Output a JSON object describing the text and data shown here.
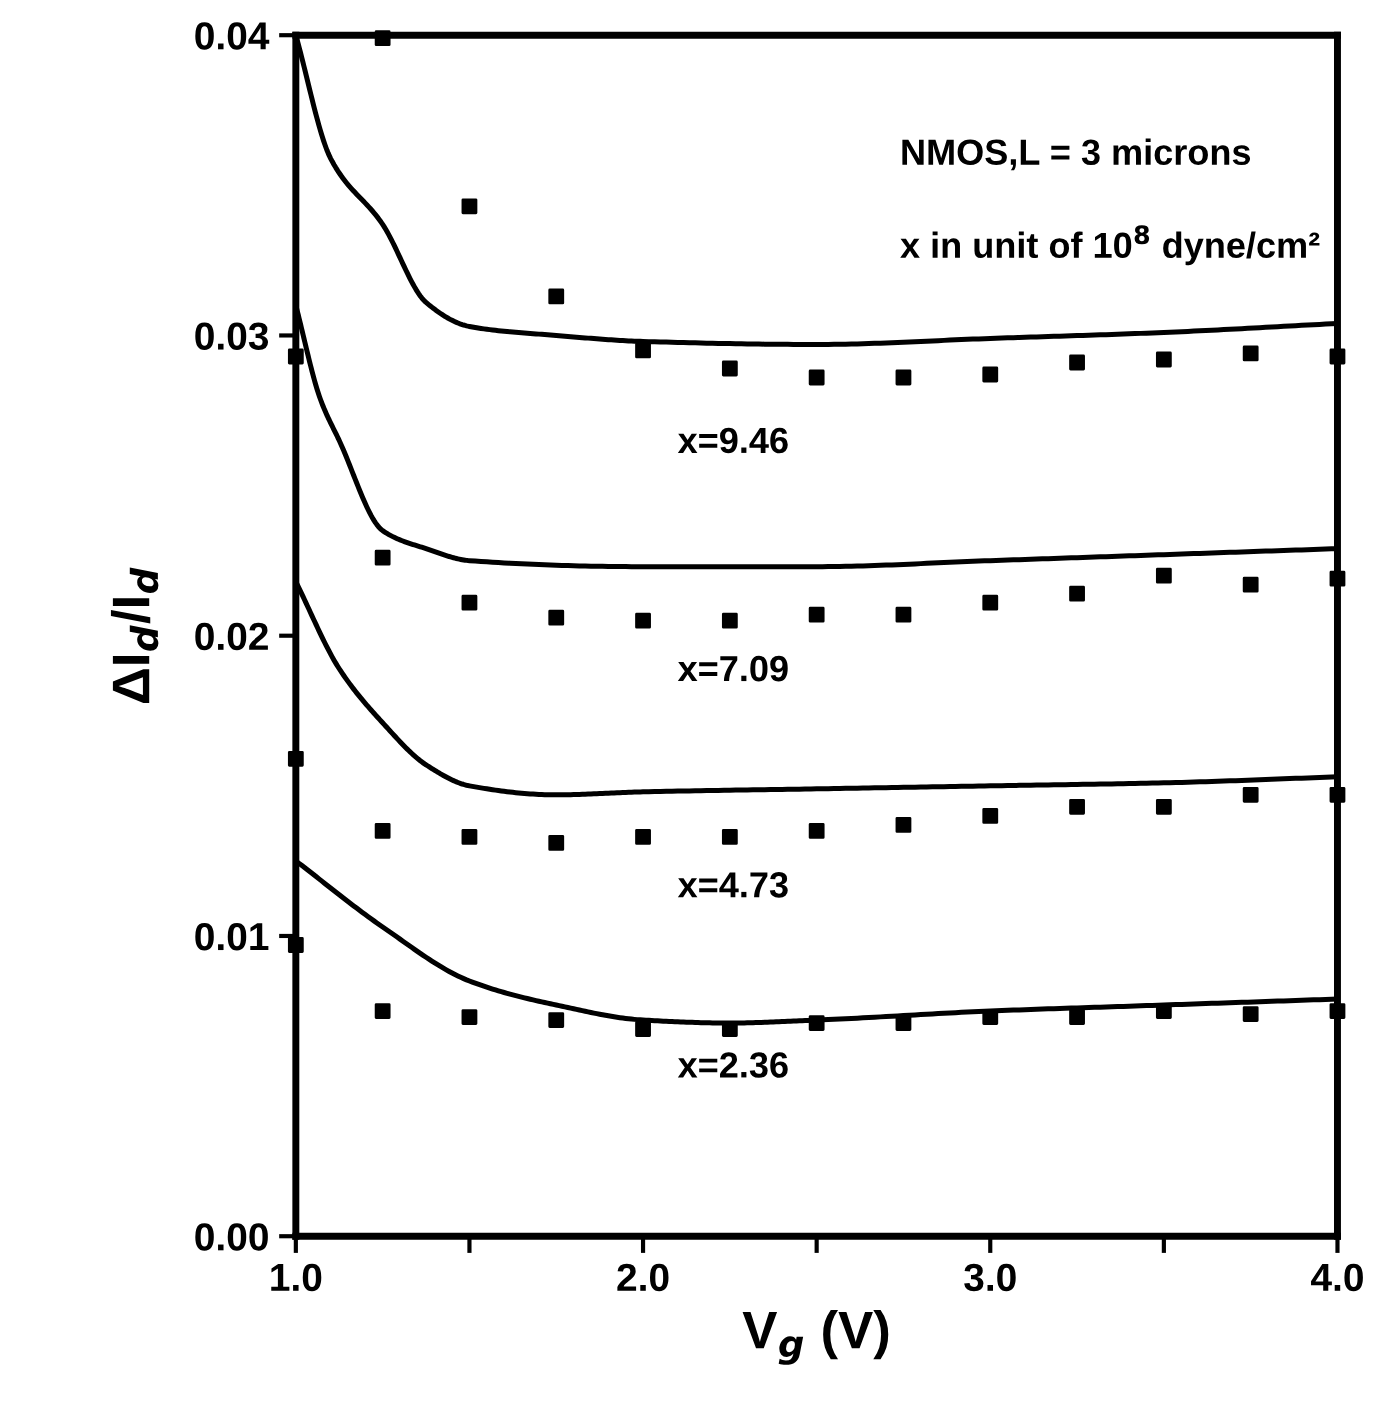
{
  "chart_data": {
    "type": "scatter",
    "xlabel": "V$_{g}$ (V)",
    "ylabel": "ΔI$_{d}$/I$_{d}$",
    "xlim": [
      1.0,
      4.0
    ],
    "ylim": [
      0.0,
      0.04
    ],
    "xticks": [
      {
        "value": 1.0,
        "label": "1.0"
      },
      {
        "value": 1.5,
        "label": null
      },
      {
        "value": 2.0,
        "label": "2.0"
      },
      {
        "value": 2.5,
        "label": null
      },
      {
        "value": 3.0,
        "label": "3.0"
      },
      {
        "value": 3.5,
        "label": null
      },
      {
        "value": 4.0,
        "label": "4.0"
      }
    ],
    "yticks": [
      {
        "value": 0.0,
        "label": "0.00"
      },
      0.01,
      0.02,
      0.03,
      0.04
    ],
    "grid": false,
    "annotations": [
      "NMOS,L = 3 microns",
      "x in unit of 10$^{8}$ dyne/cm²",
      "x=9.46",
      "x=7.09",
      "x=4.73",
      "x=2.36"
    ],
    "series": [
      {
        "marker": "square",
        "color": "#000000",
        "x": [
          1.0,
          1.25,
          1.5,
          1.75,
          2.0,
          2.25,
          2.5,
          2.75,
          3.0,
          3.25,
          3.5,
          3.75,
          4.0
        ],
        "values": [
          0.0293,
          0.0399,
          0.0343,
          0.0313,
          0.0295,
          0.0289,
          0.0286,
          0.0286,
          0.0287,
          0.0291,
          0.0292,
          0.0294,
          0.0293
        ]
      },
      {
        "marker": "square",
        "color": "#000000",
        "x": [
          1.0,
          1.25,
          1.5,
          1.75,
          2.0,
          2.25,
          2.5,
          2.75,
          3.0,
          3.25,
          3.5,
          3.75,
          4.0
        ],
        "values": [
          0.0159,
          0.0226,
          0.0211,
          0.0206,
          0.0205,
          0.0205,
          0.0207,
          0.0207,
          0.0211,
          0.0214,
          0.022,
          0.0217,
          0.0219
        ]
      },
      {
        "marker": "square",
        "color": "#000000",
        "x": [
          1.0,
          1.25,
          1.5,
          1.75,
          2.0,
          2.25,
          2.5,
          2.75,
          3.0,
          3.25,
          3.5,
          3.75,
          4.0
        ],
        "values": [
          0.0097,
          0.0135,
          0.0133,
          0.0131,
          0.0133,
          0.0133,
          0.0135,
          0.0137,
          0.014,
          0.0143,
          0.0143,
          0.0147,
          0.0147
        ]
      },
      {
        "marker": "square",
        "color": "#000000",
        "x": [
          1.25,
          1.5,
          1.75,
          2.0,
          2.25,
          2.5,
          2.75,
          3.0,
          3.25,
          3.5,
          3.75,
          4.0
        ],
        "values": [
          0.0075,
          0.0073,
          0.0072,
          0.0069,
          0.0069,
          0.0071,
          0.0071,
          0.0073,
          0.0073,
          0.0075,
          0.0074,
          0.0075
        ]
      },
      {
        "type": "line",
        "marker": "none",
        "line_style": "solid",
        "color": "#000000",
        "x": [
          1.0,
          1.1,
          1.25,
          1.375,
          1.5,
          1.75,
          2.0,
          2.5,
          3.0,
          3.5,
          4.0
        ],
        "values": [
          0.04,
          0.0359,
          0.0337,
          0.0311,
          0.0303,
          0.03,
          0.0298,
          0.0297,
          0.0299,
          0.0301,
          0.0304
        ]
      },
      {
        "type": "line",
        "marker": "none",
        "line_style": "solid",
        "color": "#000000",
        "x": [
          1.0,
          1.07,
          1.125,
          1.25,
          1.375,
          1.5,
          2.0,
          2.5,
          3.0,
          3.5,
          4.0
        ],
        "values": [
          0.031,
          0.0279,
          0.0265,
          0.0235,
          0.0229,
          0.0225,
          0.0223,
          0.0223,
          0.0225,
          0.0227,
          0.0229
        ]
      },
      {
        "type": "line",
        "marker": "none",
        "line_style": "solid",
        "color": "#000000",
        "x": [
          1.0,
          1.125,
          1.25,
          1.375,
          1.5,
          1.75,
          2.0,
          2.5,
          3.0,
          3.5,
          4.0
        ],
        "values": [
          0.0218,
          0.0189,
          0.0171,
          0.0157,
          0.015,
          0.0147,
          0.0148,
          0.0149,
          0.015,
          0.0151,
          0.0153
        ]
      },
      {
        "type": "line",
        "marker": "none",
        "line_style": "solid",
        "color": "#000000",
        "x": [
          1.0,
          1.25,
          1.5,
          1.75,
          2.0,
          2.25,
          2.5,
          3.0,
          3.5,
          4.0
        ],
        "values": [
          0.0125,
          0.0103,
          0.0085,
          0.0077,
          0.0072,
          0.0071,
          0.0072,
          0.0075,
          0.0077,
          0.0079
        ]
      }
    ]
  }
}
